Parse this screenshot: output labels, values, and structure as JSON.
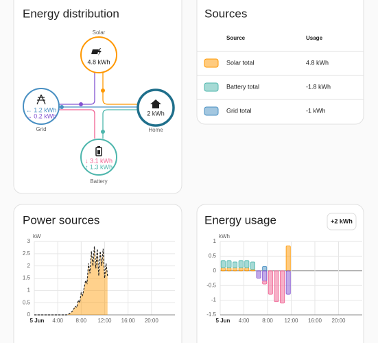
{
  "energy_distribution": {
    "title": "Energy distribution",
    "nodes": [
      {
        "label": "Solar",
        "values": [
          "4.8 kWh"
        ]
      },
      {
        "label": "Grid",
        "values": [
          "← 1.2 kWh",
          "→ 0.2 kWh"
        ]
      },
      {
        "label": "Home",
        "values": [
          "2 kWh"
        ]
      },
      {
        "label": "Battery",
        "values": [
          "↓ 3.1 kWh",
          "↑ 1.3 kWh"
        ]
      }
    ]
  },
  "sources": {
    "title": "Sources",
    "columns": [
      "Source",
      "Usage"
    ],
    "rows": [
      {
        "label": "Solar total",
        "usage": "4.8 kWh",
        "color": "#ff9800"
      },
      {
        "label": "Battery total",
        "usage": "-1.8 kWh",
        "color": "#4db6ac"
      },
      {
        "label": "Grid total",
        "usage": "-1 kWh",
        "color": "#488fc2"
      }
    ]
  },
  "chart_data": [
    {
      "type": "area",
      "title": "Power sources",
      "y_label": "kW",
      "x": [
        0,
        5.5,
        5.75,
        6,
        6.25,
        6.5,
        6.75,
        7,
        7.25,
        7.5,
        7.75,
        8,
        8.25,
        8.5,
        8.75,
        9,
        9.25,
        9.5,
        9.75,
        10,
        10.25,
        10.5,
        10.75,
        11,
        11.25,
        11.5,
        11.75,
        12,
        12.25,
        12.5
      ],
      "values": [
        0,
        0,
        0.02,
        0.05,
        0.1,
        0.15,
        0.25,
        0.35,
        0.3,
        0.6,
        0.5,
        0.9,
        0.8,
        1.1,
        1.4,
        1.3,
        2.1,
        1.7,
        2.6,
        2.0,
        2.8,
        1.9,
        2.7,
        1.6,
        2.6,
        2.0,
        2.7,
        1.5,
        2.1,
        1.6
      ],
      "color": "#ff9800",
      "xlim": [
        0,
        24
      ],
      "xticks": [
        {
          "value": 0,
          "label": "5 Jun"
        },
        {
          "value": 4,
          "label": "4:00"
        },
        {
          "value": 8,
          "label": "8:00"
        },
        {
          "value": 12,
          "label": "12:00"
        },
        {
          "value": 16,
          "label": "16:00"
        },
        {
          "value": 20,
          "label": "20:00"
        }
      ],
      "ylim": [
        0,
        3
      ],
      "yticks": [
        0,
        0.5,
        1,
        1.5,
        2,
        2.5,
        3
      ],
      "grid": true
    },
    {
      "type": "bar",
      "title": "Energy usage",
      "y_label": "kWh",
      "button": "+2 kWh",
      "stacked": true,
      "x": [
        0,
        1,
        2,
        3,
        4,
        5,
        6,
        7,
        8,
        9,
        10,
        11
      ],
      "series": [
        {
          "color": "#ff9800",
          "values": [
            0.1,
            0.1,
            0.1,
            0.1,
            0.1,
            0.05,
            0,
            0,
            0,
            0,
            0,
            0.85
          ]
        },
        {
          "color": "#4db6ac",
          "values": [
            0.25,
            0.25,
            0.2,
            0.25,
            0.25,
            0.25,
            0,
            0,
            0,
            0,
            0,
            0
          ]
        },
        {
          "color": "#488fc2",
          "values": [
            0,
            0,
            0,
            0,
            0,
            0,
            0,
            0.15,
            0,
            0,
            0,
            0
          ]
        },
        {
          "color": "#8353d1",
          "values": [
            0,
            0,
            0,
            0,
            0,
            0,
            -0.25,
            -0.35,
            0,
            0,
            0,
            -0.8
          ]
        },
        {
          "color": "#f06292",
          "values": [
            0,
            0,
            0,
            0,
            0,
            0,
            0,
            -0.1,
            -0.8,
            -1.05,
            -1.1,
            0
          ]
        }
      ],
      "xlim": [
        0,
        24
      ],
      "xticks": [
        {
          "value": 0,
          "label": "5 Jun"
        },
        {
          "value": 4,
          "label": "4:00"
        },
        {
          "value": 8,
          "label": "8:00"
        },
        {
          "value": 12,
          "label": "12:00"
        },
        {
          "value": 16,
          "label": "16:00"
        },
        {
          "value": 20,
          "label": "20:00"
        }
      ],
      "ylim": [
        -1.5,
        1
      ],
      "yticks": [
        -1.5,
        -1,
        -0.5,
        0,
        0.5,
        1
      ],
      "grid": true
    }
  ]
}
